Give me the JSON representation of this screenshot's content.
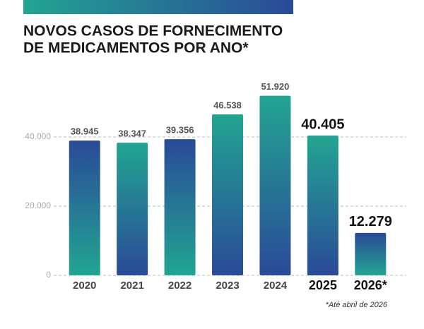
{
  "chart_data": {
    "type": "bar",
    "title": [
      "NOVOS CASOS DE FORNECIMENTO",
      "DE MEDICAMENTOS POR ANO*"
    ],
    "categories": [
      "2020",
      "2021",
      "2022",
      "2023",
      "2024",
      "2025",
      "2026*"
    ],
    "values": [
      38945,
      38347,
      39356,
      46538,
      51920,
      40405,
      12279
    ],
    "value_labels": [
      "38.945",
      "38.347",
      "39.356",
      "46.538",
      "51.920",
      "40.405",
      "12.279"
    ],
    "emphasized": [
      false,
      false,
      false,
      false,
      false,
      true,
      true
    ],
    "bar_gradients": [
      [
        "#2a4a98",
        "#22a592"
      ],
      [
        "#22a592",
        "#2a4a98"
      ],
      [
        "#2a4a98",
        "#22a592"
      ],
      [
        "#22a592",
        "#2a4a98"
      ],
      [
        "#22a592",
        "#2a4a98"
      ],
      [
        "#22a592",
        "#2a4a98"
      ],
      [
        "#2a4a98",
        "#22a592"
      ]
    ],
    "ylim": [
      0,
      55000
    ],
    "yticks": [
      {
        "value": 0,
        "label": "0"
      },
      {
        "value": 20000,
        "label": "20.000"
      },
      {
        "value": 40000,
        "label": "40.000"
      }
    ],
    "grid": true,
    "footnote": "*Até abril de 2026"
  }
}
